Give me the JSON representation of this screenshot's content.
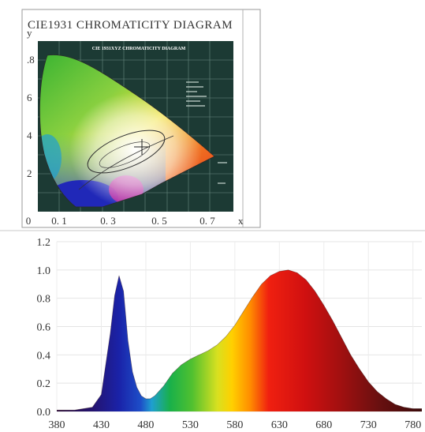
{
  "chart_data": [
    {
      "type": "diagram",
      "title": "CIE1931 CHROMATICITY DIAGRAM",
      "inner_title": "CIE 1931XYZ CHROMATICITY DIAGRAM",
      "xlabel": "x",
      "ylabel": "y",
      "x_ticks": [
        "0",
        "0. 1",
        "0. 3",
        "0. 5",
        "0. 7"
      ],
      "y_ticks": [
        ".8",
        "6",
        "4",
        "2"
      ]
    },
    {
      "type": "area",
      "title": "",
      "xlabel": "",
      "ylabel": "",
      "xlim": [
        380,
        790
      ],
      "ylim": [
        0,
        1.2
      ],
      "x_ticks": [
        380,
        430,
        480,
        530,
        580,
        630,
        680,
        730,
        780
      ],
      "y_ticks": [
        "0.0",
        "0.2",
        "0.4",
        "0.6",
        "0.8",
        "1.0",
        "1.2"
      ],
      "grid": true,
      "x": [
        380,
        400,
        420,
        430,
        440,
        445,
        450,
        455,
        460,
        465,
        470,
        475,
        480,
        485,
        490,
        500,
        510,
        520,
        530,
        540,
        550,
        560,
        570,
        580,
        590,
        600,
        610,
        620,
        630,
        640,
        650,
        660,
        670,
        680,
        690,
        700,
        710,
        720,
        730,
        740,
        750,
        760,
        770,
        780,
        790
      ],
      "y": [
        0.01,
        0.01,
        0.03,
        0.12,
        0.55,
        0.82,
        0.96,
        0.85,
        0.5,
        0.28,
        0.17,
        0.11,
        0.09,
        0.09,
        0.11,
        0.18,
        0.27,
        0.33,
        0.37,
        0.4,
        0.43,
        0.47,
        0.53,
        0.61,
        0.71,
        0.81,
        0.9,
        0.96,
        0.99,
        1.0,
        0.98,
        0.93,
        0.85,
        0.75,
        0.64,
        0.52,
        0.4,
        0.3,
        0.21,
        0.14,
        0.09,
        0.05,
        0.03,
        0.02,
        0.02
      ]
    }
  ]
}
